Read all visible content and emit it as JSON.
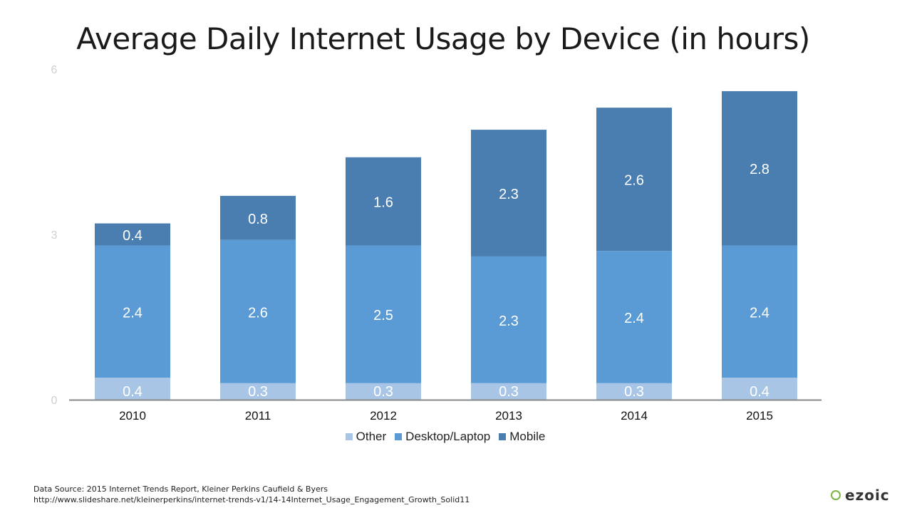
{
  "chart_data": {
    "type": "bar",
    "stacked": true,
    "title": "Average Daily Internet Usage by Device (in hours)",
    "categories": [
      "2010",
      "2011",
      "2012",
      "2013",
      "2014",
      "2015"
    ],
    "series": [
      {
        "name": "Other",
        "color": "#a9c5e6",
        "values": [
          0.4,
          0.3,
          0.3,
          0.3,
          0.3,
          0.4
        ]
      },
      {
        "name": "Desktop/Laptop",
        "color": "#5b9bd5",
        "values": [
          2.4,
          2.6,
          2.5,
          2.3,
          2.4,
          2.4
        ]
      },
      {
        "name": "Mobile",
        "color": "#4a7eb0",
        "values": [
          0.4,
          0.8,
          1.6,
          2.3,
          2.6,
          2.8
        ]
      }
    ],
    "ylim": [
      0,
      6
    ],
    "yticks": [
      "0",
      "3",
      "6"
    ],
    "xlabel": "",
    "ylabel": "",
    "grid": false,
    "legend": "bottom"
  },
  "footer": {
    "source": "Data Source: 2015 Internet Trends Report, Kleiner Perkins Caufield & Byers",
    "url": "http://www.slideshare.net/kleinerperkins/internet-trends-v1/14-14Internet_Usage_Engagement_Growth_Solid11"
  },
  "logo": {
    "text": "ezoic"
  }
}
